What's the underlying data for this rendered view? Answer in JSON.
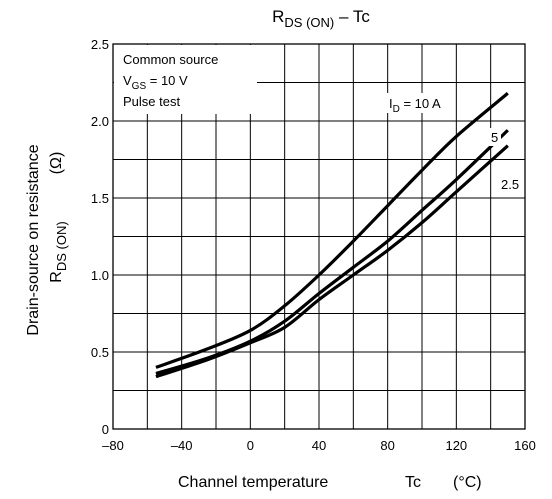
{
  "chart_data": {
    "type": "line",
    "title": {
      "main": "R",
      "sub": "DS (ON)",
      "rest": " – Tc"
    },
    "xlabel": "Channel temperature Tc (°C)",
    "xlabel_parts": {
      "text": "Channel temperature",
      "symbol": "Tc",
      "unit": "(°C)"
    },
    "ylabel": {
      "line1": "Drain-source on resistance",
      "line2_main": "R",
      "line2_sub": "DS (ON)",
      "unit": "(Ω)"
    },
    "xlim": [
      -80,
      160
    ],
    "ylim": [
      0,
      2.5
    ],
    "x_ticks": [
      -80,
      -40,
      0,
      40,
      80,
      120,
      160
    ],
    "x_tick_labels": [
      "–80",
      "–40",
      "0",
      "40",
      "80",
      "120",
      "160"
    ],
    "y_ticks": [
      0,
      0.5,
      1.0,
      1.5,
      2.0,
      2.5
    ],
    "y_tick_labels": [
      "0",
      "0.5",
      "1.0",
      "1.5",
      "2.0",
      "2.5"
    ],
    "x_minor_step": 20,
    "y_minor_step": 0.25,
    "grid": true,
    "conditions": {
      "line1": "Common source",
      "line2_main": "V",
      "line2_sub": "GS",
      "line2_rest": " = 10 V",
      "line3": "Pulse test"
    },
    "series": [
      {
        "name": "I_D = 10 A",
        "label": {
          "main": "I",
          "sub": "D",
          "rest": " = 10 A"
        },
        "x": [
          -55,
          -25,
          0,
          20,
          40,
          60,
          80,
          100,
          120,
          150
        ],
        "y": [
          0.4,
          0.52,
          0.64,
          0.8,
          1.0,
          1.22,
          1.45,
          1.68,
          1.9,
          2.18
        ]
      },
      {
        "name": "5",
        "label": {
          "main": "5",
          "sub": "",
          "rest": ""
        },
        "x": [
          -55,
          -25,
          0,
          20,
          40,
          60,
          80,
          100,
          120,
          150
        ],
        "y": [
          0.36,
          0.46,
          0.57,
          0.7,
          0.88,
          1.05,
          1.22,
          1.42,
          1.62,
          1.94
        ]
      },
      {
        "name": "2.5",
        "label": {
          "main": "2.5",
          "sub": "",
          "rest": ""
        },
        "x": [
          -55,
          -25,
          0,
          20,
          40,
          60,
          80,
          100,
          120,
          150
        ],
        "y": [
          0.34,
          0.45,
          0.56,
          0.66,
          0.84,
          1.0,
          1.16,
          1.34,
          1.54,
          1.84
        ]
      }
    ]
  }
}
